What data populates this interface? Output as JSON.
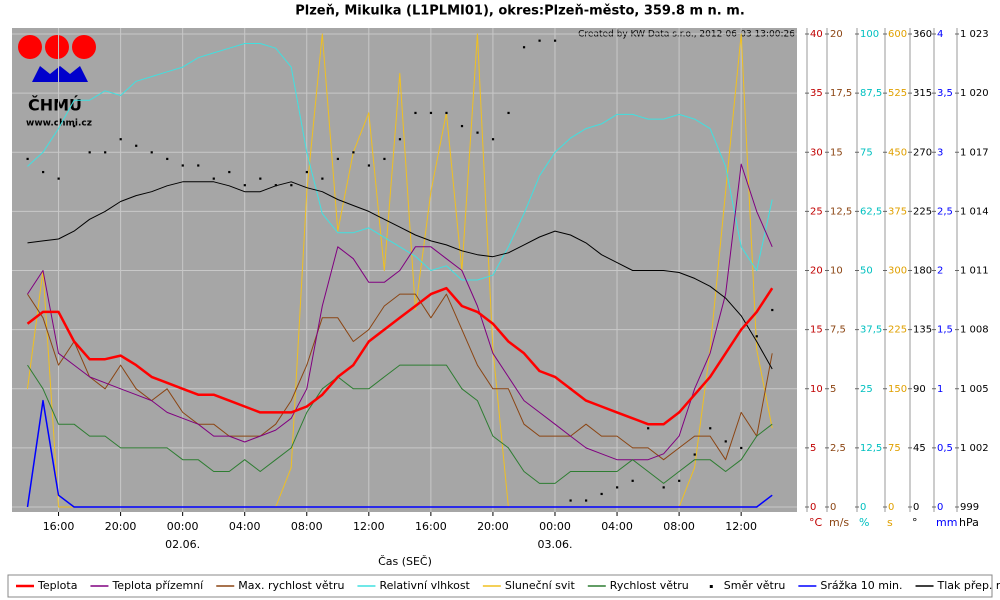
{
  "chart_data": {
    "type": "line",
    "title": "Plzeň, Mikulka (L1PLMI01), okres:Plzeň-město, 359.8 m n. m.",
    "annotation": "Created by KW Data s.r.o., 2012-06-03 13:00:26",
    "source_logo": "ČHMÚ",
    "source_url": "www.chmi.cz",
    "x_label": "Čas (SEČ)",
    "grid": true,
    "legend_position": "bottom",
    "xlim": [
      13,
      63.6
    ],
    "xticks": [
      {
        "value": 16,
        "label": "16:00"
      },
      {
        "value": 20,
        "label": "20:00"
      },
      {
        "value": 24,
        "label": "00:00"
      },
      {
        "value": 28,
        "label": "04:00"
      },
      {
        "value": 32,
        "label": "08:00"
      },
      {
        "value": 36,
        "label": "12:00"
      },
      {
        "value": 40,
        "label": "16:00"
      },
      {
        "value": 44,
        "label": "20:00"
      },
      {
        "value": 48,
        "label": "00:00"
      },
      {
        "value": 52,
        "label": "04:00"
      },
      {
        "value": 56,
        "label": "08:00"
      },
      {
        "value": 60,
        "label": "12:00"
      }
    ],
    "x_date_labels": [
      {
        "value": 24,
        "label": "02.06."
      },
      {
        "value": 48,
        "label": "03.06."
      }
    ],
    "x": [
      14,
      15,
      16,
      17,
      18,
      19,
      20,
      21,
      22,
      23,
      24,
      25,
      26,
      27,
      28,
      29,
      30,
      31,
      32,
      33,
      34,
      35,
      36,
      37,
      38,
      39,
      40,
      41,
      42,
      43,
      44,
      45,
      46,
      47,
      48,
      49,
      50,
      51,
      52,
      53,
      54,
      55,
      56,
      57,
      58,
      59,
      60,
      61,
      62
    ],
    "y_axes": [
      {
        "unit": "°C",
        "color": "#c00000",
        "lim": [
          0,
          40
        ],
        "ticks": [
          0,
          5,
          10,
          15,
          20,
          25,
          30,
          35,
          40
        ]
      },
      {
        "unit": "m/s",
        "color": "#8b4513",
        "lim": [
          0,
          20
        ],
        "ticks": [
          0,
          {
            "value": 2.5,
            "label": "2,5"
          },
          5,
          {
            "value": 7.5,
            "label": "7,5"
          },
          10,
          {
            "value": 12.5,
            "label": "12,5"
          },
          15,
          {
            "value": 17.5,
            "label": "17,5"
          },
          20
        ]
      },
      {
        "unit": "%",
        "color": "#00c0c0",
        "lim": [
          0,
          100
        ],
        "ticks": [
          0,
          {
            "value": 12.5,
            "label": "12,5"
          },
          25,
          {
            "value": 37.5,
            "label": "37,5"
          },
          50,
          {
            "value": 62.5,
            "label": "62,5"
          },
          75,
          {
            "value": 87.5,
            "label": "87,5"
          },
          100
        ]
      },
      {
        "unit": "s",
        "color": "#e0a000",
        "lim": [
          0,
          600
        ],
        "ticks": [
          0,
          75,
          150,
          225,
          300,
          375,
          450,
          525,
          600
        ]
      },
      {
        "unit": "°",
        "color": "#000000",
        "lim": [
          0,
          360
        ],
        "ticks": [
          0,
          45,
          90,
          135,
          180,
          225,
          270,
          315,
          360
        ]
      },
      {
        "unit": "mm",
        "color": "#0000ff",
        "lim": [
          0,
          4
        ],
        "ticks": [
          0,
          {
            "value": 0.5,
            "label": "0,5"
          },
          1,
          {
            "value": 1.5,
            "label": "1,5"
          },
          2,
          {
            "value": 2.5,
            "label": "2,5"
          },
          3,
          {
            "value": 3.5,
            "label": "3,5"
          },
          4
        ]
      },
      {
        "unit": "hPa",
        "color": "#000000",
        "lim": [
          999,
          1023
        ],
        "ticks": [
          999,
          {
            "value": 1002,
            "label": "1 002"
          },
          {
            "value": 1005,
            "label": "1 005"
          },
          {
            "value": 1008,
            "label": "1 008"
          },
          {
            "value": 1011,
            "label": "1 011"
          },
          {
            "value": 1014,
            "label": "1 014"
          },
          {
            "value": 1017,
            "label": "1 017"
          },
          {
            "value": 1020,
            "label": "1 020"
          },
          {
            "value": 1023,
            "label": "1 023"
          }
        ]
      }
    ],
    "series": [
      {
        "name": "Teplota",
        "color": "#ff0000",
        "axis": 0,
        "kind": "line",
        "width": 2.5,
        "values": [
          15.5,
          16.5,
          16.5,
          14,
          12.5,
          12.5,
          12.8,
          12,
          11,
          10.5,
          10,
          9.5,
          9.5,
          9,
          8.5,
          8,
          8,
          8,
          8.5,
          9.5,
          11,
          12,
          14,
          15,
          16,
          17,
          18,
          18.5,
          17,
          16.5,
          15.5,
          14,
          13,
          11.5,
          11,
          10,
          9,
          8.5,
          8,
          7.5,
          7,
          7,
          8,
          9.5,
          11,
          13,
          15,
          16.5,
          18.5
        ]
      },
      {
        "name": "Teplota přízemní",
        "color": "#800080",
        "axis": 0,
        "kind": "line",
        "width": 1,
        "values": [
          18,
          20,
          13,
          12,
          11,
          10.5,
          10,
          9.5,
          9,
          8,
          7.5,
          7,
          6,
          6,
          5.5,
          6,
          6.5,
          7.5,
          10,
          17,
          22,
          21,
          19,
          19,
          20,
          22,
          22,
          21,
          20,
          17,
          13,
          11,
          9,
          8,
          7,
          6,
          5,
          4.5,
          4,
          4,
          4,
          4.5,
          6,
          10,
          13,
          18,
          29,
          25,
          22
        ]
      },
      {
        "name": "Max. rychlost větru",
        "color": "#8b4513",
        "axis": 1,
        "kind": "line",
        "width": 1,
        "values": [
          9,
          8,
          6,
          7,
          5.5,
          5,
          6,
          5,
          4.5,
          5,
          4,
          3.5,
          3.5,
          3,
          3,
          3,
          3.5,
          4.5,
          6,
          8,
          8,
          7,
          7.5,
          8.5,
          9,
          9,
          8,
          9,
          7.5,
          6,
          5,
          5,
          3.5,
          3,
          3,
          3,
          3.5,
          3,
          3,
          2.5,
          2.5,
          2,
          2.5,
          3,
          3,
          2,
          4,
          3,
          6.5
        ]
      },
      {
        "name": "Relativní vlhkost",
        "color": "#40e0e0",
        "axis": 2,
        "kind": "line",
        "width": 1,
        "values": [
          72,
          75,
          80,
          86,
          86,
          88,
          87,
          90,
          91,
          92,
          93,
          95,
          96,
          97,
          98,
          98,
          97,
          93,
          75,
          62,
          58,
          58,
          59,
          57,
          55,
          53,
          50,
          51,
          48,
          48,
          49,
          55,
          62,
          70,
          75,
          78,
          80,
          81,
          83,
          83,
          82,
          82,
          83,
          82,
          80,
          72,
          55,
          50,
          65
        ]
      },
      {
        "name": "Sluneční svit",
        "color": "#f0c020",
        "axis": 3,
        "kind": "line",
        "width": 1,
        "values": [
          150,
          300,
          0,
          0,
          0,
          0,
          0,
          0,
          0,
          0,
          0,
          0,
          0,
          0,
          0,
          0,
          0,
          50,
          400,
          600,
          350,
          450,
          500,
          300,
          550,
          250,
          400,
          500,
          300,
          600,
          200,
          0,
          0,
          0,
          0,
          0,
          0,
          0,
          0,
          0,
          0,
          0,
          0,
          50,
          200,
          400,
          600,
          200,
          100
        ]
      },
      {
        "name": "Rychlost větru",
        "color": "#2e7d32",
        "axis": 1,
        "kind": "line",
        "width": 1,
        "values": [
          6,
          5,
          3.5,
          3.5,
          3,
          3,
          2.5,
          2.5,
          2.5,
          2.5,
          2,
          2,
          1.5,
          1.5,
          2,
          1.5,
          2,
          2.5,
          4,
          5,
          5.5,
          5,
          5,
          5.5,
          6,
          6,
          6,
          6,
          5,
          4.5,
          3,
          2.5,
          1.5,
          1,
          1,
          1.5,
          1.5,
          1.5,
          1.5,
          2,
          1.5,
          1,
          1.5,
          2,
          2,
          1.5,
          2,
          3,
          3.5
        ]
      },
      {
        "name": "Směr větru",
        "color": "#000000",
        "axis": 4,
        "kind": "scatter",
        "width": 1,
        "values": [
          265,
          255,
          250,
          290,
          270,
          270,
          280,
          275,
          270,
          265,
          260,
          260,
          250,
          255,
          245,
          250,
          245,
          245,
          255,
          250,
          265,
          270,
          260,
          265,
          280,
          300,
          300,
          300,
          290,
          285,
          280,
          300,
          350,
          355,
          355,
          5,
          5,
          10,
          15,
          20,
          60,
          15,
          20,
          40,
          60,
          50,
          45,
          130,
          150
        ]
      },
      {
        "name": "Srážka 10 min.",
        "color": "#0000ff",
        "axis": 5,
        "kind": "line",
        "width": 1.5,
        "values": [
          0,
          0.9,
          0.1,
          0,
          0,
          0,
          0,
          0,
          0,
          0,
          0,
          0,
          0,
          0,
          0,
          0,
          0,
          0,
          0,
          0,
          0,
          0,
          0,
          0,
          0,
          0,
          0,
          0,
          0,
          0,
          0,
          0,
          0,
          0,
          0,
          0,
          0,
          0,
          0,
          0,
          0,
          0,
          0,
          0,
          0,
          0,
          0,
          0,
          0.1
        ]
      },
      {
        "name": "Tlak přep. na hl. moře",
        "color": "#000000",
        "axis": 6,
        "kind": "line",
        "width": 1,
        "values": [
          1012.4,
          1012.5,
          1012.6,
          1013,
          1013.6,
          1014,
          1014.5,
          1014.8,
          1015,
          1015.3,
          1015.5,
          1015.5,
          1015.5,
          1015.3,
          1015,
          1015,
          1015.3,
          1015.5,
          1015.2,
          1015,
          1014.6,
          1014.3,
          1014,
          1013.6,
          1013.2,
          1012.8,
          1012.5,
          1012.3,
          1012,
          1011.8,
          1011.7,
          1011.9,
          1012.3,
          1012.7,
          1013,
          1012.8,
          1012.4,
          1011.8,
          1011.4,
          1011,
          1011,
          1011,
          1010.9,
          1010.6,
          1010.2,
          1009.6,
          1008.7,
          1007.4,
          1006
        ]
      }
    ]
  }
}
